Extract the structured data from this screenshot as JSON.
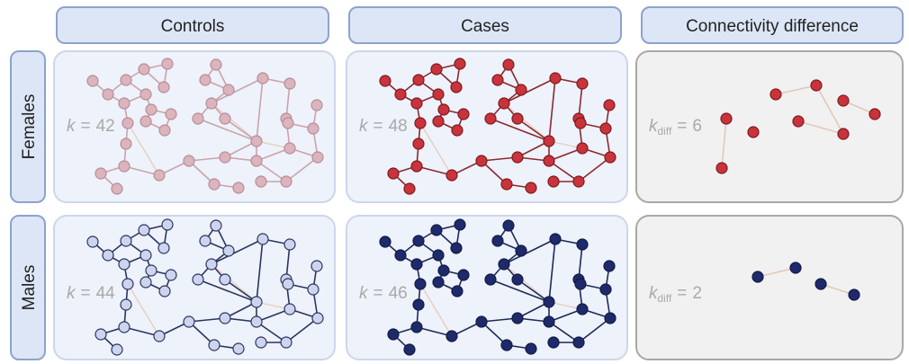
{
  "columns": [
    {
      "title": "Controls"
    },
    {
      "title": "Cases"
    },
    {
      "title": "Connectivity difference"
    }
  ],
  "rows": [
    {
      "label": "Females",
      "panels": [
        {
          "symbol": "k",
          "relation": "=",
          "value": 42
        },
        {
          "symbol": "k",
          "relation": "=",
          "value": 48
        },
        {
          "symbol": "k",
          "subscript": "diff",
          "relation": "=",
          "value": 6
        }
      ]
    },
    {
      "label": "Males",
      "panels": [
        {
          "symbol": "k",
          "relation": "=",
          "value": 44
        },
        {
          "symbol": "k",
          "relation": "=",
          "value": 46
        },
        {
          "symbol": "k",
          "subscript": "diff",
          "relation": "=",
          "value": 2
        }
      ]
    }
  ]
}
